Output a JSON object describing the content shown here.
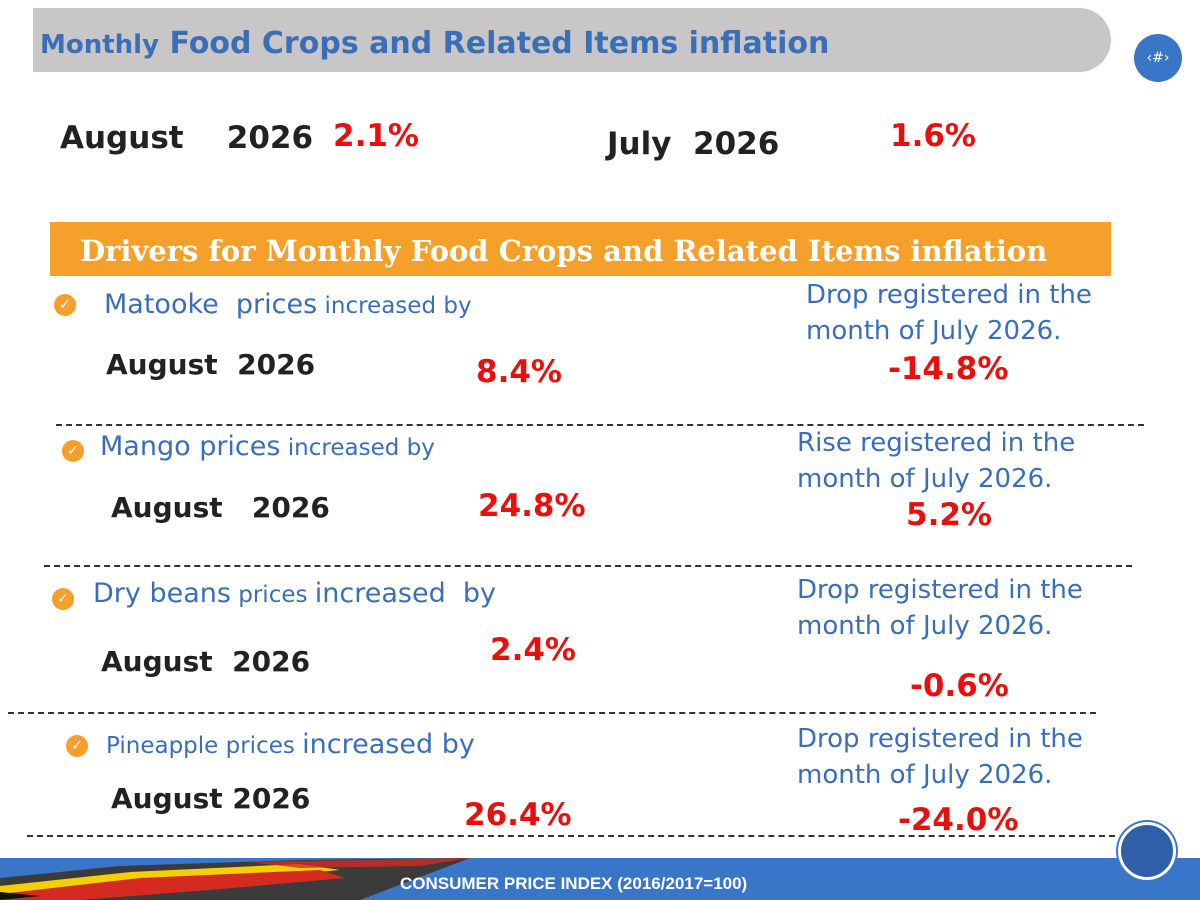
{
  "header": {
    "title_prefix": "Monthly",
    "title_rest": "Food Crops and Related Items inflation",
    "page_badge": "‹#›"
  },
  "headline": {
    "current_label": "August    2026",
    "current_value": "2.1%",
    "previous_label": "July  2026",
    "previous_value": "1.6%"
  },
  "drivers": {
    "title": "Drivers for Monthly Food Crops and Related Items inflation",
    "items": [
      {
        "name_big": "Matooke  prices",
        "name_small": " increased by",
        "month": "August  2026",
        "value": "8.4%",
        "note_line1": "Drop registered  in the",
        "note_line2": "month of July 2026.",
        "prev_value": "-14.8%"
      },
      {
        "name_big": "Mango prices",
        "name_small": " increased by",
        "month": "August   2026",
        "value": "24.8%",
        "note_line1": "Rise registered  in the",
        "note_line2": "month of July 2026.",
        "prev_value": "5.2%"
      },
      {
        "name_big": "Dry beans",
        "name_small": " prices ",
        "name_tail": "increased  by",
        "month": "August  2026",
        "value": "2.4%",
        "note_line1": "Drop registered  in the",
        "note_line2": "month of July 2026.",
        "prev_value": "-0.6%"
      },
      {
        "name_small": "Pineapple prices ",
        "name_tail": "increased by",
        "month": "August 2026",
        "value": "26.4%",
        "note_line1": "Drop registered  in the",
        "note_line2": "month of July 2026.",
        "prev_value": "-24.0%"
      }
    ]
  },
  "footer": {
    "text": "CONSUMER PRICE INDEX (2016/2017=100)"
  },
  "colors": {
    "accent_blue": "#3a6fb7",
    "accent_orange": "#f5a02a",
    "value_red": "#e8100d",
    "banner_grey": "#c8c6c7"
  }
}
